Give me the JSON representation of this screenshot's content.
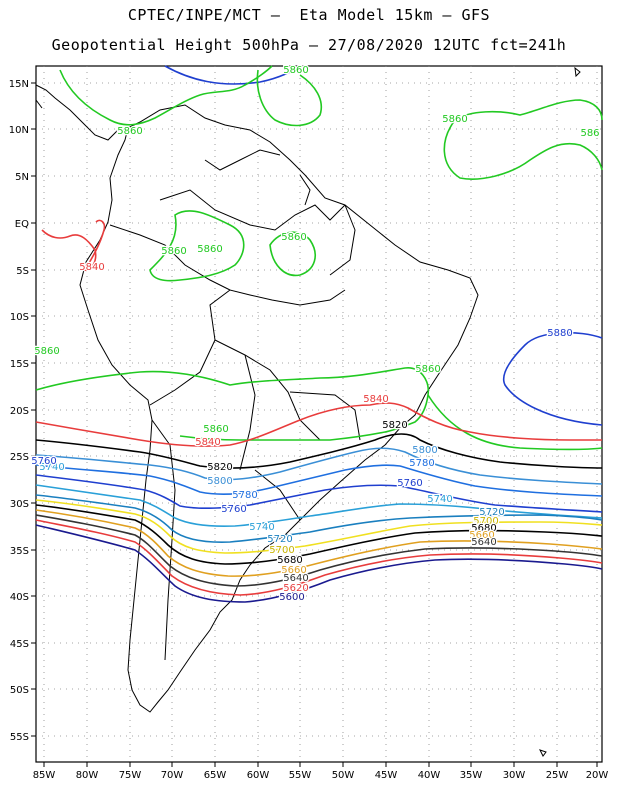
{
  "header": {
    "line1": "CPTEC/INPE/MCT –  Eta Model 15km – GFS",
    "line2": "Geopotential Height 500hPa – 27/08/2020 12UTC fct=241h"
  },
  "axes": {
    "lon_labels": [
      "85W",
      "80W",
      "75W",
      "70W",
      "65W",
      "60W",
      "55W",
      "50W",
      "45W",
      "40W",
      "35W",
      "30W",
      "25W",
      "20W"
    ],
    "lat_labels": [
      "15N",
      "10N",
      "5N",
      "EQ",
      "5S",
      "10S",
      "15S",
      "20S",
      "25S",
      "30S",
      "35S",
      "40S",
      "45S",
      "50S",
      "55S"
    ]
  },
  "contours": [
    {
      "value": "5880",
      "color": "#1f3fcf"
    },
    {
      "value": "5860",
      "color": "#22c922"
    },
    {
      "value": "5840",
      "color": "#e83c3c"
    },
    {
      "value": "5820",
      "color": "#000000"
    },
    {
      "value": "5800",
      "color": "#3a8fd6"
    },
    {
      "value": "5780",
      "color": "#1f6fe0"
    },
    {
      "value": "5760",
      "color": "#1f3fcf"
    },
    {
      "value": "5740",
      "color": "#2aa0d8"
    },
    {
      "value": "5720",
      "color": "#1a7fbf"
    },
    {
      "value": "5700",
      "color": "#f0e020"
    },
    {
      "value": "5680",
      "color": "#000000"
    },
    {
      "value": "5660",
      "color": "#e0a020"
    },
    {
      "value": "5640",
      "color": "#333333"
    },
    {
      "value": "5620",
      "color": "#e83c3c"
    },
    {
      "value": "5600",
      "color": "#1a1a8f"
    }
  ],
  "map_labels": [
    {
      "text": "5860",
      "color": "#22c922"
    },
    {
      "text": "5860",
      "color": "#22c922"
    },
    {
      "text": "5860",
      "color": "#22c922"
    },
    {
      "text": "586",
      "color": "#22c922"
    },
    {
      "text": "5860",
      "color": "#22c922"
    },
    {
      "text": "5860",
      "color": "#22c922"
    },
    {
      "text": "5860",
      "color": "#22c922"
    },
    {
      "text": "5860",
      "color": "#22c922"
    },
    {
      "text": "5860",
      "color": "#22c922"
    },
    {
      "text": "5860",
      "color": "#22c922"
    },
    {
      "text": "5840",
      "color": "#e83c3c"
    },
    {
      "text": "5840",
      "color": "#e83c3c"
    },
    {
      "text": "5840",
      "color": "#e83c3c"
    },
    {
      "text": "5880",
      "color": "#1f3fcf"
    },
    {
      "text": "5820",
      "color": "#000000"
    },
    {
      "text": "5820",
      "color": "#000000"
    },
    {
      "text": "5800",
      "color": "#3a8fd6"
    },
    {
      "text": "5800",
      "color": "#3a8fd6"
    },
    {
      "text": "5780",
      "color": "#1f6fe0"
    },
    {
      "text": "5780",
      "color": "#1f6fe0"
    },
    {
      "text": "5760",
      "color": "#1f3fcf"
    },
    {
      "text": "5760",
      "color": "#1f3fcf"
    },
    {
      "text": "5740",
      "color": "#2aa0d8"
    },
    {
      "text": "5740",
      "color": "#2aa0d8"
    },
    {
      "text": "5740",
      "color": "#2aa0d8"
    },
    {
      "text": "5720",
      "color": "#1a7fbf"
    },
    {
      "text": "5720",
      "color": "#1a7fbf"
    },
    {
      "text": "5700",
      "color": "#c8b400"
    },
    {
      "text": "5700",
      "color": "#c8b400"
    },
    {
      "text": "5680",
      "color": "#000000"
    },
    {
      "text": "5680",
      "color": "#000000"
    },
    {
      "text": "5660",
      "color": "#e0a020"
    },
    {
      "text": "5660",
      "color": "#e0a020"
    },
    {
      "text": "5640",
      "color": "#333333"
    },
    {
      "text": "5640",
      "color": "#333333"
    },
    {
      "text": "5620",
      "color": "#e83c3c"
    },
    {
      "text": "5600",
      "color": "#1a1a8f"
    },
    {
      "text": "5760",
      "color": "#1f3fcf"
    }
  ]
}
